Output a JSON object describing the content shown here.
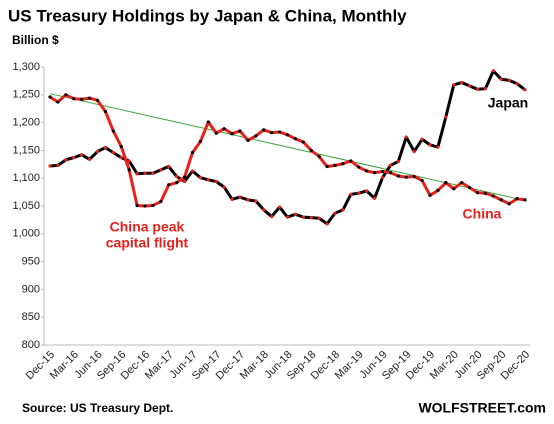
{
  "chart_data": {
    "type": "line",
    "title": "US Treasury Holdings by Japan & China, Monthly",
    "subtitle": "Billion $",
    "source": "Source: US Treasury Dept.",
    "brand": "WOLFSTREET.com",
    "annotation": [
      "China peak",
      "capital flight"
    ],
    "categories": [
      "Dec-15",
      null,
      null,
      "Mar-16",
      null,
      null,
      "Jun-16",
      null,
      null,
      "Sep-16",
      null,
      null,
      "Dec-16",
      null,
      null,
      "Mar-17",
      null,
      null,
      "Jun-17",
      null,
      null,
      "Sep-17",
      null,
      null,
      "Dec-17",
      null,
      null,
      "Mar-18",
      null,
      null,
      "Jun-18",
      null,
      null,
      "Sep-18",
      null,
      null,
      "Dec-18",
      null,
      null,
      "Mar-19",
      null,
      null,
      "Jun-19",
      null,
      null,
      "Sep-19",
      null,
      null,
      "Dec-19",
      null,
      null,
      "Mar-20",
      null,
      null,
      "Jun-20",
      null,
      null,
      "Sep-20",
      null,
      null,
      "Dec-20"
    ],
    "series": [
      {
        "name": "Japan",
        "color": "#000000",
        "marker_color": "#e8201a",
        "values": [
          1122,
          1123,
          1133,
          1137,
          1142,
          1134,
          1148,
          1155,
          1146,
          1137,
          1131,
          1108,
          1109,
          1109,
          1115,
          1121,
          1103,
          1094,
          1113,
          1101,
          1097,
          1094,
          1084,
          1062,
          1066,
          1061,
          1059,
          1043,
          1031,
          1048,
          1030,
          1035,
          1030,
          1029,
          1028,
          1018,
          1037,
          1043,
          1071,
          1073,
          1077,
          1064,
          1101,
          1123,
          1130,
          1174,
          1148,
          1170,
          1160,
          1156,
          1210,
          1268,
          1272,
          1266,
          1260,
          1261,
          1293,
          1278,
          1276,
          1270,
          1259
        ]
      },
      {
        "name": "China",
        "color": "#e8201a",
        "marker_color": "#000000",
        "values": [
          1246,
          1237,
          1250,
          1243,
          1242,
          1244,
          1240,
          1220,
          1185,
          1157,
          1115,
          1051,
          1050,
          1051,
          1058,
          1088,
          1092,
          1102,
          1146,
          1166,
          1201,
          1181,
          1189,
          1180,
          1185,
          1168,
          1176,
          1187,
          1182,
          1183,
          1178,
          1171,
          1165,
          1150,
          1139,
          1121,
          1123,
          1126,
          1131,
          1120,
          1113,
          1110,
          1112,
          1110,
          1104,
          1102,
          1103,
          1096,
          1069,
          1078,
          1092,
          1081,
          1092,
          1083,
          1074,
          1073,
          1068,
          1061,
          1054,
          1063,
          1061
        ]
      }
    ],
    "trend_line": {
      "values": [
        1252,
        1060
      ],
      "color": "#3aa53a"
    },
    "ylim": [
      800,
      1300
    ],
    "yticks": [
      800,
      850,
      900,
      950,
      {
        "value": 1000,
        "label": "1,000"
      },
      {
        "value": 1050,
        "label": "1,050"
      },
      {
        "value": 1100,
        "label": "1,100"
      },
      {
        "value": 1150,
        "label": "1,150"
      },
      {
        "value": 1200,
        "label": "1,200"
      },
      {
        "value": 1250,
        "label": "1,250"
      },
      {
        "value": 1300,
        "label": "1,300"
      }
    ],
    "grid": false
  }
}
